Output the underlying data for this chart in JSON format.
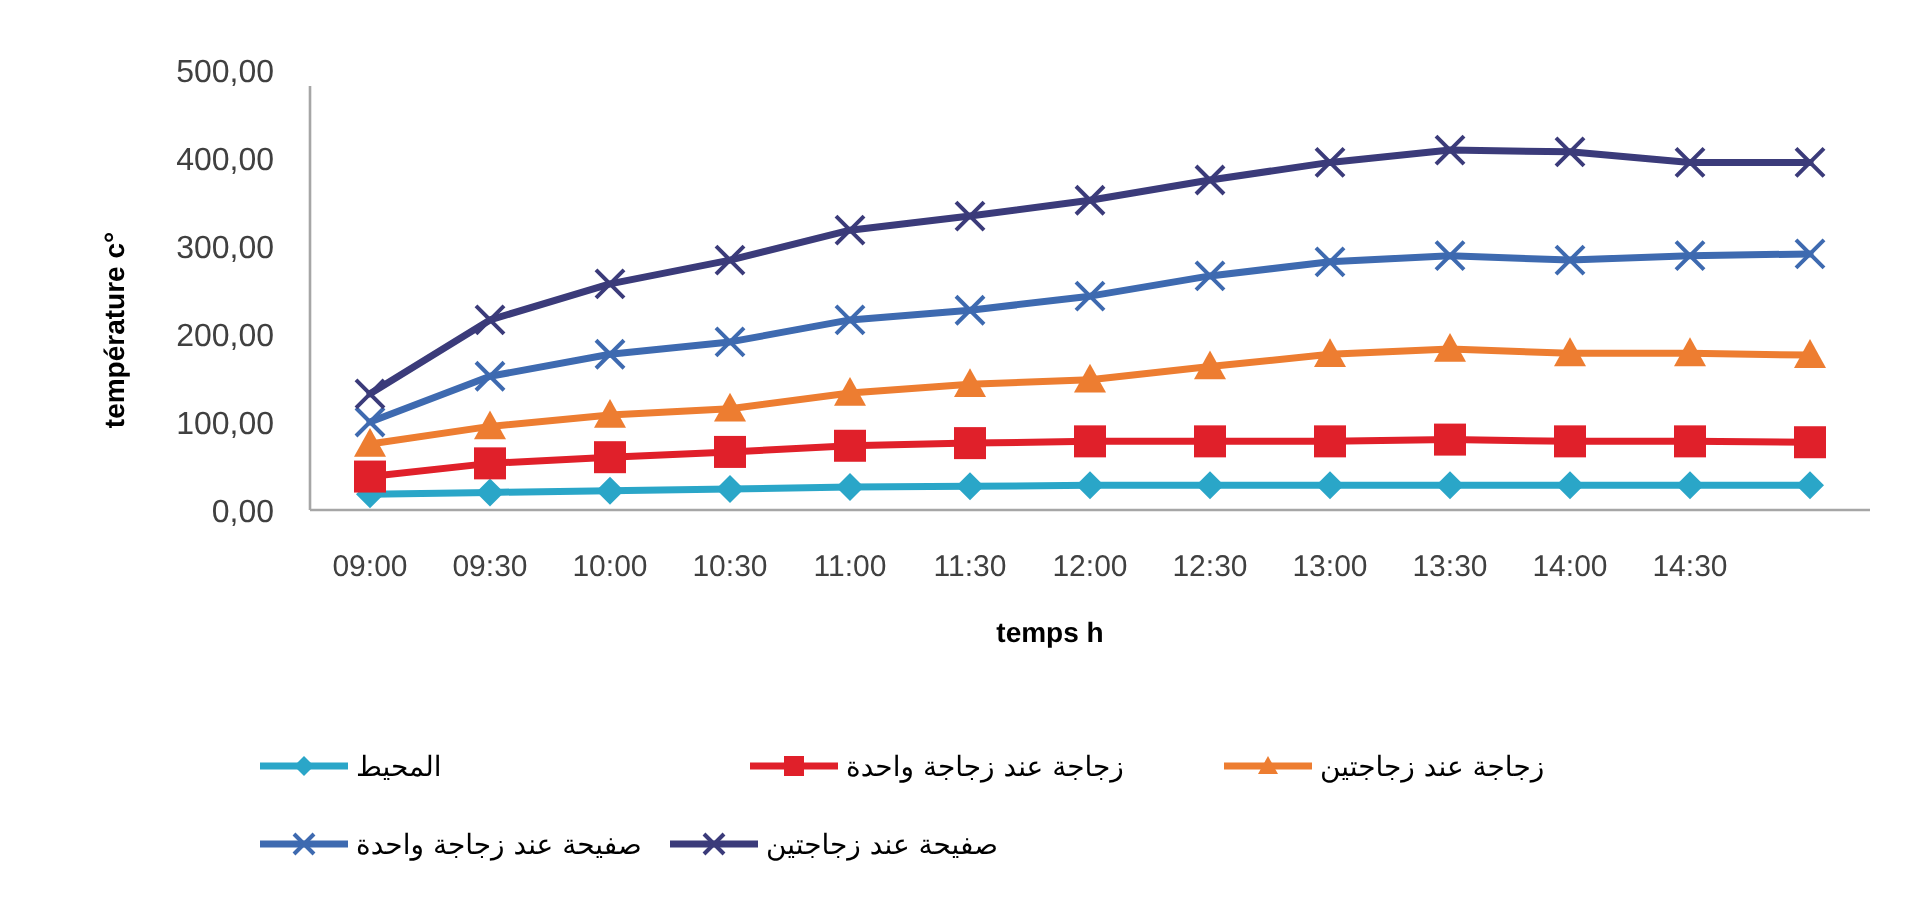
{
  "chart_data": {
    "type": "line",
    "xlabel": "temps h",
    "ylabel": "température c°",
    "categories": [
      "09:00",
      "09:30",
      "10:00",
      "10:30",
      "11:00",
      "11:30",
      "12:00",
      "12:30",
      "13:00",
      "13:30",
      "14:00",
      "14:30",
      null
    ],
    "ylim": [
      0,
      500
    ],
    "yticks": [
      {
        "value": 0,
        "label": "0,00"
      },
      {
        "value": 100,
        "label": "100,00"
      },
      {
        "value": 200,
        "label": "200,00"
      },
      {
        "value": 300,
        "label": "300,00"
      },
      {
        "value": 400,
        "label": "400,00"
      },
      {
        "value": 500,
        "label": "500,00"
      }
    ],
    "legend": "bottom",
    "grid": false,
    "line_style": "solid",
    "series": [
      {
        "name": "المحيط",
        "color": "#2aa6c8",
        "marker": "diamond",
        "values": [
          18,
          20,
          22,
          24,
          26,
          27,
          28,
          28,
          28,
          28,
          28,
          28,
          28
        ]
      },
      {
        "name": "زجاجة عند زجاجة واحدة",
        "color": "#e0202a",
        "marker": "square",
        "values": [
          38,
          53,
          60,
          66,
          73,
          76,
          78,
          78,
          78,
          80,
          78,
          78,
          77
        ]
      },
      {
        "name": "زجاجة عند زجاجتين",
        "color": "#ed7d31",
        "marker": "triangle",
        "values": [
          75,
          95,
          108,
          115,
          133,
          143,
          148,
          163,
          177,
          183,
          178,
          178,
          176
        ]
      },
      {
        "name": "صفيحة عند زجاجة واحدة",
        "color": "#3e6ab0",
        "marker": "cross",
        "values": [
          100,
          152,
          177,
          191,
          216,
          227,
          243,
          266,
          282,
          289,
          284,
          289,
          291
        ]
      },
      {
        "name": "صفيحة عند زجاجتين",
        "color": "#3b3b7a",
        "marker": "cross",
        "values": [
          132,
          216,
          257,
          284,
          318,
          334,
          352,
          375,
          395,
          409,
          407,
          395,
          395
        ]
      }
    ]
  }
}
